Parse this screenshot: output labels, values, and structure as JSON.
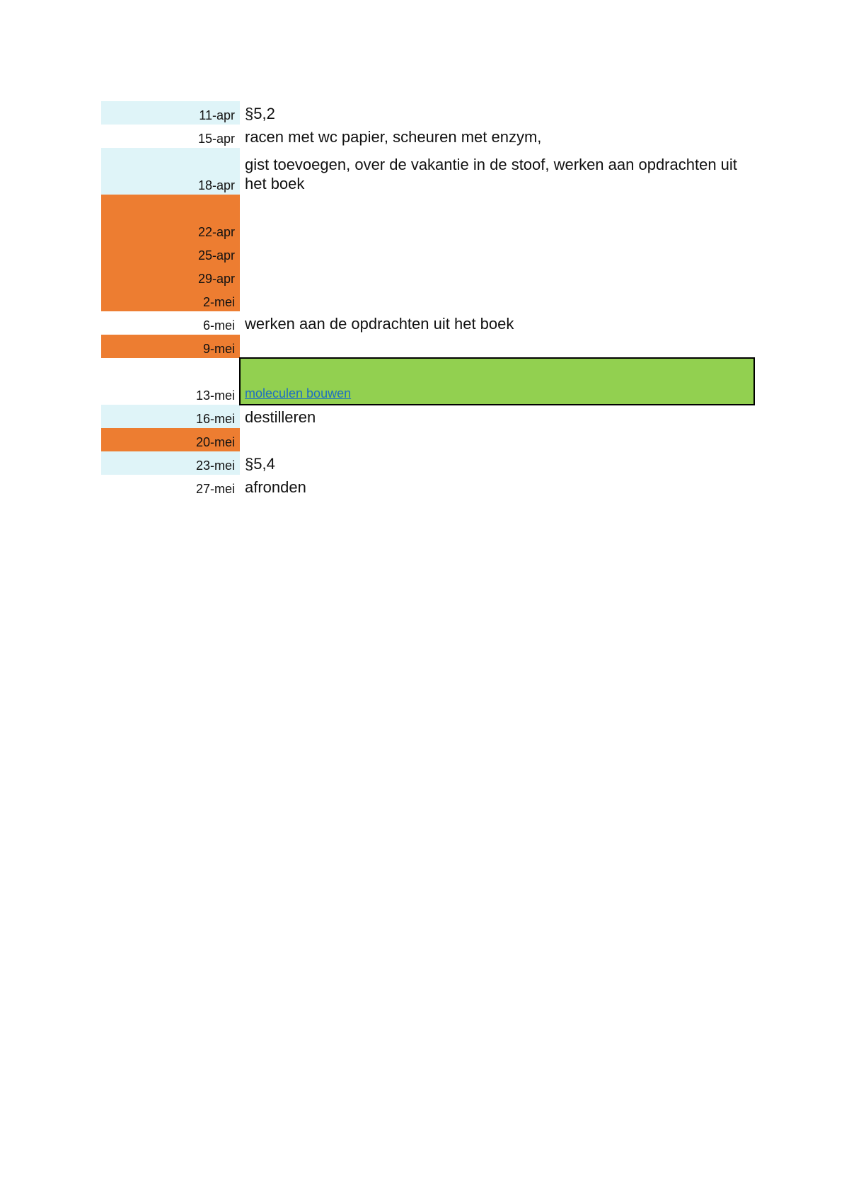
{
  "rows": [
    {
      "date": "11-apr",
      "text": "§5,2"
    },
    {
      "date": "15-apr",
      "text": "racen met wc papier, scheuren met enzym,"
    },
    {
      "date": "18-apr",
      "text": "gist toevoegen, over de vakantie in de stoof, werken aan opdrachten uit het boek"
    },
    {
      "date": "22-apr"
    },
    {
      "date": "25-apr"
    },
    {
      "date": "29-apr"
    },
    {
      "date": "2-mei"
    },
    {
      "date": "6-mei",
      "text": "werken aan de opdrachten uit het boek"
    },
    {
      "date": "9-mei"
    },
    {
      "date": "13-mei",
      "text": "moleculen bouwen"
    },
    {
      "date": "16-mei",
      "text": "destilleren"
    },
    {
      "date": "20-mei"
    },
    {
      "date": "23-mei",
      "text": "§5,4"
    },
    {
      "date": "27-mei",
      "text": "afronden"
    }
  ]
}
